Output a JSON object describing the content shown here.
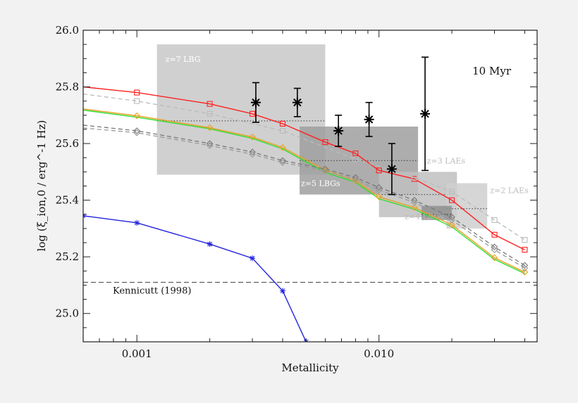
{
  "chart_data": {
    "type": "line",
    "title": "",
    "xlabel": "Metallicity",
    "ylabel": "log (ξ_ion,0 / erg^-1 Hz)",
    "x_scale": "log",
    "xlim": [
      0.0006,
      0.045
    ],
    "ylim": [
      24.9,
      26.0
    ],
    "x_ticks": [
      0.001,
      0.01
    ],
    "x_tick_labels": [
      "0.001",
      "0.010"
    ],
    "y_ticks": [
      25.0,
      25.2,
      25.4,
      25.6,
      25.8,
      26.0
    ],
    "y_tick_labels": [
      "25.0",
      "25.2",
      "25.4",
      "25.6",
      "25.8",
      "26.0"
    ],
    "annotation": "10 Myr",
    "reference_line": {
      "label": "Kennicutt (1998)",
      "y": 25.11
    },
    "regions": [
      {
        "label": "z=7 LBG",
        "x": [
          0.00121,
          0.006
        ],
        "y": [
          25.49,
          25.95
        ],
        "shade": "#c8c8c8",
        "median_y": 25.68
      },
      {
        "label": "z=5 LBGs",
        "x": [
          0.0047,
          0.0145
        ],
        "y": [
          25.42,
          25.66
        ],
        "shade": "#9f9f9f",
        "median_y": 25.54
      },
      {
        "label": "z=3 LAEs",
        "x": [
          0.01,
          0.021
        ],
        "y": [
          25.34,
          25.5
        ],
        "shade": "#bfbfbf",
        "median_y": 25.42
      },
      {
        "label": "z=2 LAEs",
        "x": [
          0.019,
          0.028
        ],
        "y": [
          25.3,
          25.46
        ],
        "shade": "#cfcfcf",
        "median_y": 25.37
      },
      {
        "label": "z=4 LBGs",
        "x": [
          0.015,
          0.02
        ],
        "y": [
          25.33,
          25.38
        ],
        "shade": "#8f8f8f",
        "median_y": 25.35
      }
    ],
    "series": [
      {
        "color": "#ff2020",
        "dash": "solid",
        "marker": "square",
        "x": [
          0.0006,
          0.001,
          0.002,
          0.003,
          0.004,
          0.006,
          0.008,
          0.01,
          0.014,
          0.02,
          0.03,
          0.04
        ],
        "y": [
          25.8,
          25.78,
          25.74,
          25.705,
          25.67,
          25.605,
          25.565,
          25.505,
          25.475,
          25.4,
          25.278,
          25.225
        ]
      },
      {
        "color": "#bbbbbb",
        "dash": "dashed",
        "marker": "square",
        "x": [
          0.0006,
          0.001,
          0.002,
          0.004,
          0.008,
          0.014,
          0.02,
          0.03,
          0.04
        ],
        "y": [
          25.775,
          25.75,
          25.705,
          25.645,
          25.545,
          25.48,
          25.43,
          25.33,
          25.26
        ]
      },
      {
        "color": "#33dd33",
        "dash": "solid",
        "marker": "none",
        "x": [
          0.0006,
          0.001,
          0.002,
          0.003,
          0.004,
          0.006,
          0.008,
          0.01,
          0.014,
          0.02,
          0.03,
          0.04
        ],
        "y": [
          25.718,
          25.693,
          25.652,
          25.618,
          25.581,
          25.498,
          25.463,
          25.405,
          25.368,
          25.306,
          25.191,
          25.141
        ]
      },
      {
        "color": "#e8a020",
        "dash": "solid",
        "marker": "diamond",
        "x": [
          0.0006,
          0.001,
          0.002,
          0.003,
          0.004,
          0.006,
          0.008,
          0.01,
          0.014,
          0.02,
          0.03,
          0.04
        ],
        "y": [
          25.722,
          25.698,
          25.656,
          25.623,
          25.586,
          25.506,
          25.469,
          25.412,
          25.374,
          25.313,
          25.197,
          25.146
        ]
      },
      {
        "color": "#777777",
        "dash": "dashed",
        "marker": "diamond",
        "x": [
          0.0006,
          0.001,
          0.002,
          0.003,
          0.004,
          0.006,
          0.008,
          0.01,
          0.014,
          0.02,
          0.03,
          0.04
        ],
        "y": [
          25.665,
          25.645,
          25.6,
          25.57,
          25.54,
          25.51,
          25.48,
          25.445,
          25.4,
          25.34,
          25.235,
          25.17
        ]
      },
      {
        "color": "#999999",
        "dash": "dashed",
        "marker": "diamond",
        "x": [
          0.0006,
          0.001,
          0.002,
          0.003,
          0.004,
          0.006,
          0.008,
          0.01,
          0.014,
          0.02,
          0.03,
          0.04
        ],
        "y": [
          25.655,
          25.638,
          25.593,
          25.562,
          25.533,
          25.503,
          25.472,
          25.436,
          25.392,
          25.33,
          25.225,
          25.16
        ]
      },
      {
        "color": "#2222dd",
        "dash": "solid",
        "marker": "star",
        "x": [
          0.0006,
          0.001,
          0.002,
          0.003,
          0.004,
          0.005
        ],
        "y": [
          25.345,
          25.32,
          25.245,
          25.195,
          25.08,
          24.9
        ]
      }
    ],
    "observations": [
      {
        "x": 0.0031,
        "y": 25.745,
        "y_low": 25.675,
        "y_high": 25.815
      },
      {
        "x": 0.0046,
        "y": 25.745,
        "y_low": 25.695,
        "y_high": 25.795
      },
      {
        "x": 0.0068,
        "y": 25.645,
        "y_low": 25.59,
        "y_high": 25.7
      },
      {
        "x": 0.0091,
        "y": 25.685,
        "y_low": 25.625,
        "y_high": 25.745
      },
      {
        "x": 0.0113,
        "y": 25.51,
        "y_low": 25.42,
        "y_high": 25.6
      },
      {
        "x": 0.0155,
        "y": 25.705,
        "y_low": 25.505,
        "y_high": 25.905
      }
    ]
  }
}
